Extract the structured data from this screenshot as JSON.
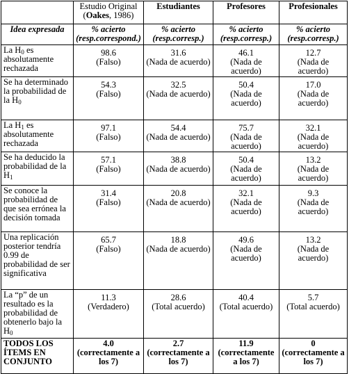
{
  "table": {
    "header": [
      [
        {
          "text": "Estudio Original ("
        },
        {
          "bold": "Oakes"
        },
        {
          "text": ", 1986)"
        }
      ],
      [
        {
          "bold": "Estudiantes"
        }
      ],
      [
        {
          "bold": "Profesores"
        }
      ],
      [
        {
          "bold": "Profesionales"
        }
      ]
    ],
    "subheader": {
      "idea": "Idea expresada",
      "cells": [
        {
          "label": "% acierto",
          "detail": "(resp.correspond.)"
        },
        {
          "label": "% acierto",
          "detail": "(resp.corresp.)"
        },
        {
          "label": "% acierto",
          "detail": "(resp.corresp.)"
        },
        {
          "label": "% acierto",
          "detail": "(resp.corresp.)"
        }
      ]
    },
    "rows": [
      {
        "idea": [
          {
            "text": "La H"
          },
          {
            "sub": "0"
          },
          {
            "text": " es absolutamente rechazada"
          }
        ],
        "cells": [
          {
            "value": "98.6",
            "note": "(Falso)"
          },
          {
            "value": "31.6",
            "note": "(Nada de acuerdo)"
          },
          {
            "value": "46.1",
            "note": "(Nada de acuerdo)"
          },
          {
            "value": "12.7",
            "note": "(Nada de acuerdo)"
          }
        ]
      },
      {
        "idea": [
          {
            "text": "Se ha determinado la probabilidad de la H"
          },
          {
            "sub": "0"
          }
        ],
        "cells": [
          {
            "value": "54.3",
            "note": "(Falso)"
          },
          {
            "value": "32.5",
            "note": "(Nada de acuerdo)"
          },
          {
            "value": "50.4",
            "note": "(Nada de acuerdo)"
          },
          {
            "value": "17.0",
            "note": "(Nada de acuerdo)"
          }
        ]
      },
      {
        "idea": [
          {
            "text": "La H"
          },
          {
            "sub": "1"
          },
          {
            "text": " es absolutamente rechazada"
          }
        ],
        "cells": [
          {
            "value": "97.1",
            "note": "(Falso)"
          },
          {
            "value": "54.4",
            "note": "(Nada de acuerdo)"
          },
          {
            "value": "75.7",
            "note": "(Nada de acuerdo)"
          },
          {
            "value": "32.1",
            "note": "(Nada de acuerdo)"
          }
        ]
      },
      {
        "idea": [
          {
            "text": "Se ha deducido la probabilidad de la H"
          },
          {
            "sub": "1"
          }
        ],
        "cells": [
          {
            "value": "57.1",
            "note": "(Falso)"
          },
          {
            "value": "38.8",
            "note": "(Nada de acuerdo)"
          },
          {
            "value": "50.4",
            "note": "(Nada de acuerdo)"
          },
          {
            "value": "13.2",
            "note": "(Nada de acuerdo)"
          }
        ]
      },
      {
        "idea": [
          {
            "text": "Se conoce la probabilidad de que sea errónea la decisión tomada"
          }
        ],
        "cells": [
          {
            "value": "31.4",
            "note": "(Falso)"
          },
          {
            "value": "20.8",
            "note": "(Nada de acuerdo)"
          },
          {
            "value": "32.1",
            "note": "(Nada de acuerdo)"
          },
          {
            "value": "9.3",
            "note": "(Nada de acuerdo)"
          }
        ]
      },
      {
        "idea": [
          {
            "text": "Una replicación posterior tendría 0.99 de probabilidad de ser significativa"
          }
        ],
        "cells": [
          {
            "value": "65.7",
            "note": "(Falso)"
          },
          {
            "value": "18.8",
            "note": "(Nada de acuerdo)"
          },
          {
            "value": "49.6",
            "note": "(Nada de acuerdo)"
          },
          {
            "value": "13.2",
            "note": "(Nada de acuerdo)"
          }
        ]
      },
      {
        "idea": [
          {
            "text": "La “p” de un resultado es la probabilidad de obtenerlo bajo la H"
          },
          {
            "sub": "0"
          }
        ],
        "cells": [
          {
            "value": "11.3",
            "note": "(Verdadero)"
          },
          {
            "value": "28.6",
            "note": "(Total acuerdo)"
          },
          {
            "value": "40.4",
            "note": "(Total acuerdo)"
          },
          {
            "value": "5.7",
            "note": "(Total acuerdo)"
          }
        ]
      }
    ],
    "total": {
      "idea": "TODOS LOS ÍTEMS EN CONJUNTO",
      "cells": [
        {
          "value": "4.0",
          "note": "(correctamente a los 7)"
        },
        {
          "value": "2.7",
          "note": "(correctamente a los 7)"
        },
        {
          "value": "11.9",
          "note": "(correctamente a los 7)"
        },
        {
          "value": "0",
          "note": "(correctamente a los 7)"
        }
      ]
    }
  }
}
